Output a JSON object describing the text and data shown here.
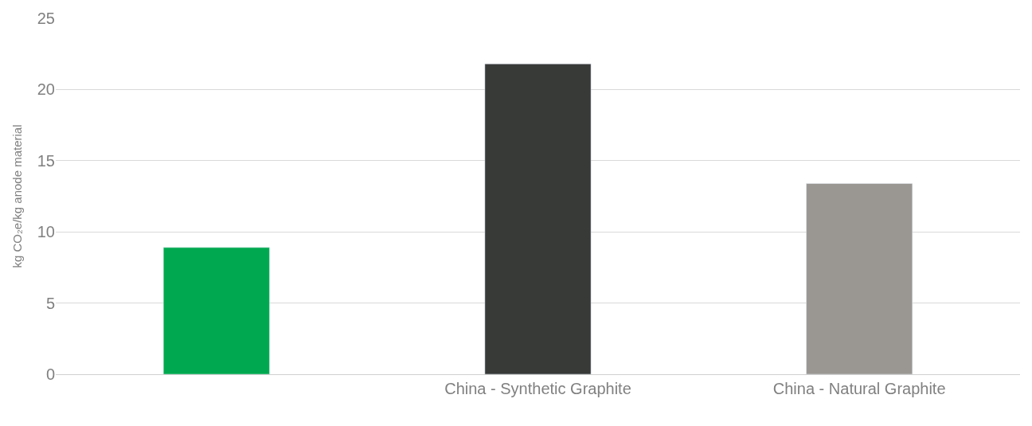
{
  "chart_data": {
    "type": "bar",
    "ylabel": "kg CO₂e/kg anode material",
    "categories": [
      null,
      "China - Synthetic Graphite",
      "China - Natural Graphite"
    ],
    "values": [
      8.9,
      21.8,
      13.4
    ],
    "colors": [
      "#00a94f",
      "#383a38",
      "#9a9692"
    ],
    "ylim": [
      0,
      25
    ],
    "yticks": [
      0,
      5,
      10,
      15,
      20,
      25
    ],
    "grid": "y"
  }
}
